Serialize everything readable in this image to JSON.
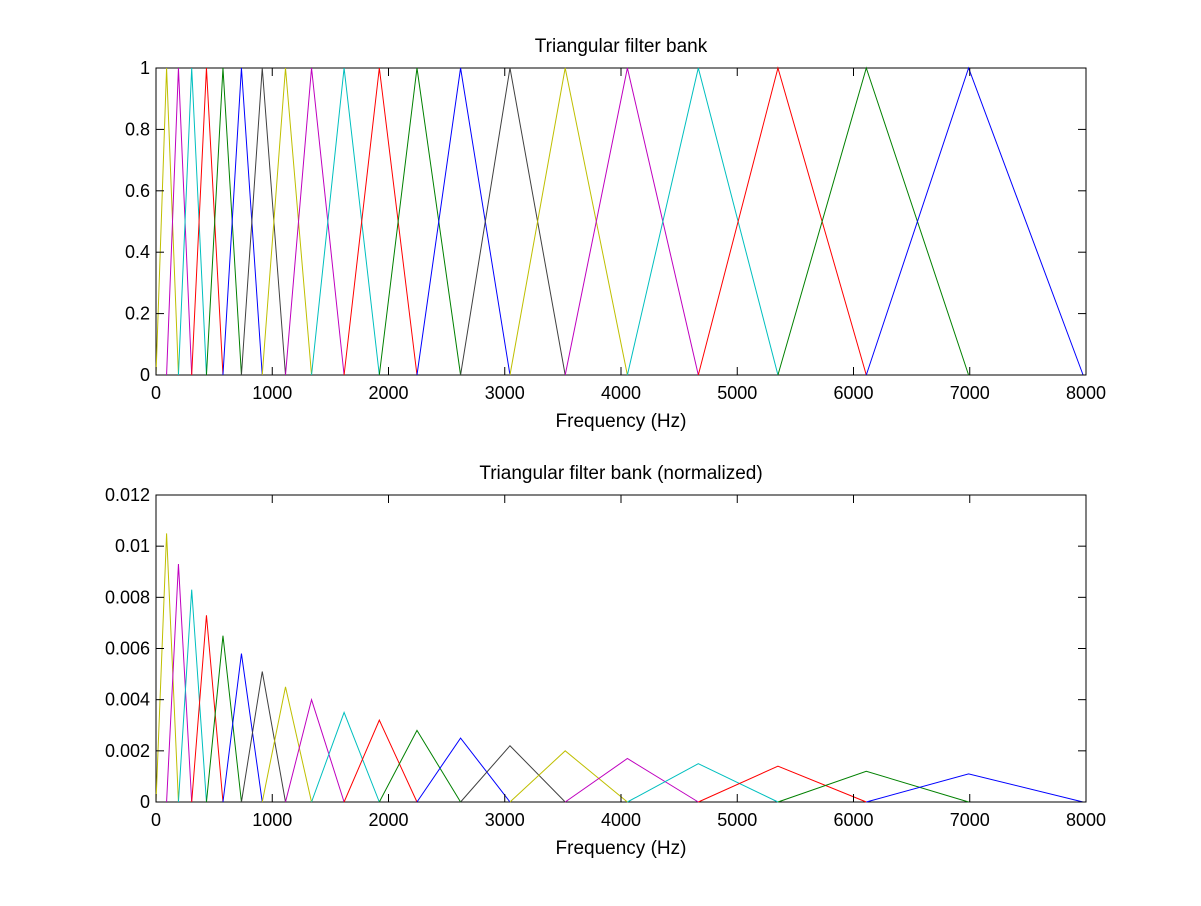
{
  "chart_data": [
    {
      "type": "line",
      "title": "Triangular filter bank",
      "xlabel": "Frequency (Hz)",
      "ylabel": "",
      "xlim": [
        0,
        8000
      ],
      "ylim": [
        0,
        1
      ],
      "xticks": [
        0,
        1000,
        2000,
        3000,
        4000,
        5000,
        6000,
        7000,
        8000
      ],
      "xtick_labels": [
        "0",
        "1000",
        "2000",
        "3000",
        "4000",
        "5000",
        "6000",
        "7000",
        "8000"
      ],
      "yticks": [
        0,
        0.2,
        0.4,
        0.6,
        0.8,
        1
      ],
      "ytick_labels": [
        "0",
        "0.2",
        "0.4",
        "0.6",
        "0.8",
        "1"
      ],
      "grid": false,
      "legend": "none",
      "filter_edges_hz": [
        0,
        91,
        193,
        307,
        434,
        576,
        735,
        914,
        1114,
        1338,
        1618,
        1921,
        2245,
        2620,
        3045,
        3520,
        4055,
        4665,
        5350,
        6110,
        6990,
        7975
      ],
      "series": [
        {
          "color": "#bfbf00",
          "x": [
            0,
            91,
            193
          ],
          "y": [
            0,
            1,
            0
          ]
        },
        {
          "color": "#bf00bf",
          "x": [
            91,
            193,
            307
          ],
          "y": [
            0,
            1,
            0
          ]
        },
        {
          "color": "#00bfbf",
          "x": [
            193,
            307,
            434
          ],
          "y": [
            0,
            1,
            0
          ]
        },
        {
          "color": "#ff0000",
          "x": [
            307,
            434,
            576
          ],
          "y": [
            0,
            1,
            0
          ]
        },
        {
          "color": "#008000",
          "x": [
            434,
            576,
            735
          ],
          "y": [
            0,
            1,
            0
          ]
        },
        {
          "color": "#0000ff",
          "x": [
            576,
            735,
            914
          ],
          "y": [
            0,
            1,
            0
          ]
        },
        {
          "color": "#404040",
          "x": [
            735,
            914,
            1114
          ],
          "y": [
            0,
            1,
            0
          ]
        },
        {
          "color": "#bfbf00",
          "x": [
            914,
            1114,
            1338
          ],
          "y": [
            0,
            1,
            0
          ]
        },
        {
          "color": "#bf00bf",
          "x": [
            1114,
            1338,
            1618
          ],
          "y": [
            0,
            1,
            0
          ]
        },
        {
          "color": "#00bfbf",
          "x": [
            1338,
            1618,
            1921
          ],
          "y": [
            0,
            1,
            0
          ]
        },
        {
          "color": "#ff0000",
          "x": [
            1618,
            1921,
            2245
          ],
          "y": [
            0,
            1,
            0
          ]
        },
        {
          "color": "#008000",
          "x": [
            1921,
            2245,
            2620
          ],
          "y": [
            0,
            1,
            0
          ]
        },
        {
          "color": "#0000ff",
          "x": [
            2245,
            2620,
            3045
          ],
          "y": [
            0,
            1,
            0
          ]
        },
        {
          "color": "#404040",
          "x": [
            2620,
            3045,
            3520
          ],
          "y": [
            0,
            1,
            0
          ]
        },
        {
          "color": "#bfbf00",
          "x": [
            3045,
            3520,
            4055
          ],
          "y": [
            0,
            1,
            0
          ]
        },
        {
          "color": "#bf00bf",
          "x": [
            3520,
            4055,
            4665
          ],
          "y": [
            0,
            1,
            0
          ]
        },
        {
          "color": "#00bfbf",
          "x": [
            4055,
            4665,
            5350
          ],
          "y": [
            0,
            1,
            0
          ]
        },
        {
          "color": "#ff0000",
          "x": [
            4665,
            5350,
            6110
          ],
          "y": [
            0,
            1,
            0
          ]
        },
        {
          "color": "#008000",
          "x": [
            5350,
            6110,
            6990
          ],
          "y": [
            0,
            1,
            0
          ]
        },
        {
          "color": "#0000ff",
          "x": [
            6110,
            6990,
            7975
          ],
          "y": [
            0,
            1,
            0
          ]
        }
      ]
    },
    {
      "type": "line",
      "title": "Triangular filter bank (normalized)",
      "xlabel": "Frequency (Hz)",
      "ylabel": "",
      "xlim": [
        0,
        8000
      ],
      "ylim": [
        0,
        0.012
      ],
      "xticks": [
        0,
        1000,
        2000,
        3000,
        4000,
        5000,
        6000,
        7000,
        8000
      ],
      "xtick_labels": [
        "0",
        "1000",
        "2000",
        "3000",
        "4000",
        "5000",
        "6000",
        "7000",
        "8000"
      ],
      "yticks": [
        0,
        0.002,
        0.004,
        0.006,
        0.008,
        0.01,
        0.012
      ],
      "ytick_labels": [
        "0",
        "0.002",
        "0.004",
        "0.006",
        "0.008",
        "0.01",
        "0.012"
      ],
      "grid": false,
      "legend": "none",
      "series": [
        {
          "color": "#bfbf00",
          "x": [
            0,
            91,
            193
          ],
          "y": [
            0,
            0.0105,
            0
          ]
        },
        {
          "color": "#bf00bf",
          "x": [
            91,
            193,
            307
          ],
          "y": [
            0,
            0.0093,
            0
          ]
        },
        {
          "color": "#00bfbf",
          "x": [
            193,
            307,
            434
          ],
          "y": [
            0,
            0.0083,
            0
          ]
        },
        {
          "color": "#ff0000",
          "x": [
            307,
            434,
            576
          ],
          "y": [
            0,
            0.0073,
            0
          ]
        },
        {
          "color": "#008000",
          "x": [
            434,
            576,
            735
          ],
          "y": [
            0,
            0.0065,
            0
          ]
        },
        {
          "color": "#0000ff",
          "x": [
            576,
            735,
            914
          ],
          "y": [
            0,
            0.0058,
            0
          ]
        },
        {
          "color": "#404040",
          "x": [
            735,
            914,
            1114
          ],
          "y": [
            0,
            0.0051,
            0
          ]
        },
        {
          "color": "#bfbf00",
          "x": [
            914,
            1114,
            1338
          ],
          "y": [
            0,
            0.0045,
            0
          ]
        },
        {
          "color": "#bf00bf",
          "x": [
            1114,
            1338,
            1618
          ],
          "y": [
            0,
            0.004,
            0
          ]
        },
        {
          "color": "#00bfbf",
          "x": [
            1338,
            1618,
            1921
          ],
          "y": [
            0,
            0.0035,
            0
          ]
        },
        {
          "color": "#ff0000",
          "x": [
            1618,
            1921,
            2245
          ],
          "y": [
            0,
            0.0032,
            0
          ]
        },
        {
          "color": "#008000",
          "x": [
            1921,
            2245,
            2620
          ],
          "y": [
            0,
            0.0028,
            0
          ]
        },
        {
          "color": "#0000ff",
          "x": [
            2245,
            2620,
            3045
          ],
          "y": [
            0,
            0.0025,
            0
          ]
        },
        {
          "color": "#404040",
          "x": [
            2620,
            3045,
            3520
          ],
          "y": [
            0,
            0.0022,
            0
          ]
        },
        {
          "color": "#bfbf00",
          "x": [
            3045,
            3520,
            4055
          ],
          "y": [
            0,
            0.002,
            0
          ]
        },
        {
          "color": "#bf00bf",
          "x": [
            3520,
            4055,
            4665
          ],
          "y": [
            0,
            0.0017,
            0
          ]
        },
        {
          "color": "#00bfbf",
          "x": [
            4055,
            4665,
            5350
          ],
          "y": [
            0,
            0.0015,
            0
          ]
        },
        {
          "color": "#ff0000",
          "x": [
            4665,
            5350,
            6110
          ],
          "y": [
            0,
            0.0014,
            0
          ]
        },
        {
          "color": "#008000",
          "x": [
            5350,
            6110,
            6990
          ],
          "y": [
            0,
            0.0012,
            0
          ]
        },
        {
          "color": "#0000ff",
          "x": [
            6110,
            6990,
            7975
          ],
          "y": [
            0,
            0.0011,
            0
          ]
        }
      ]
    }
  ]
}
